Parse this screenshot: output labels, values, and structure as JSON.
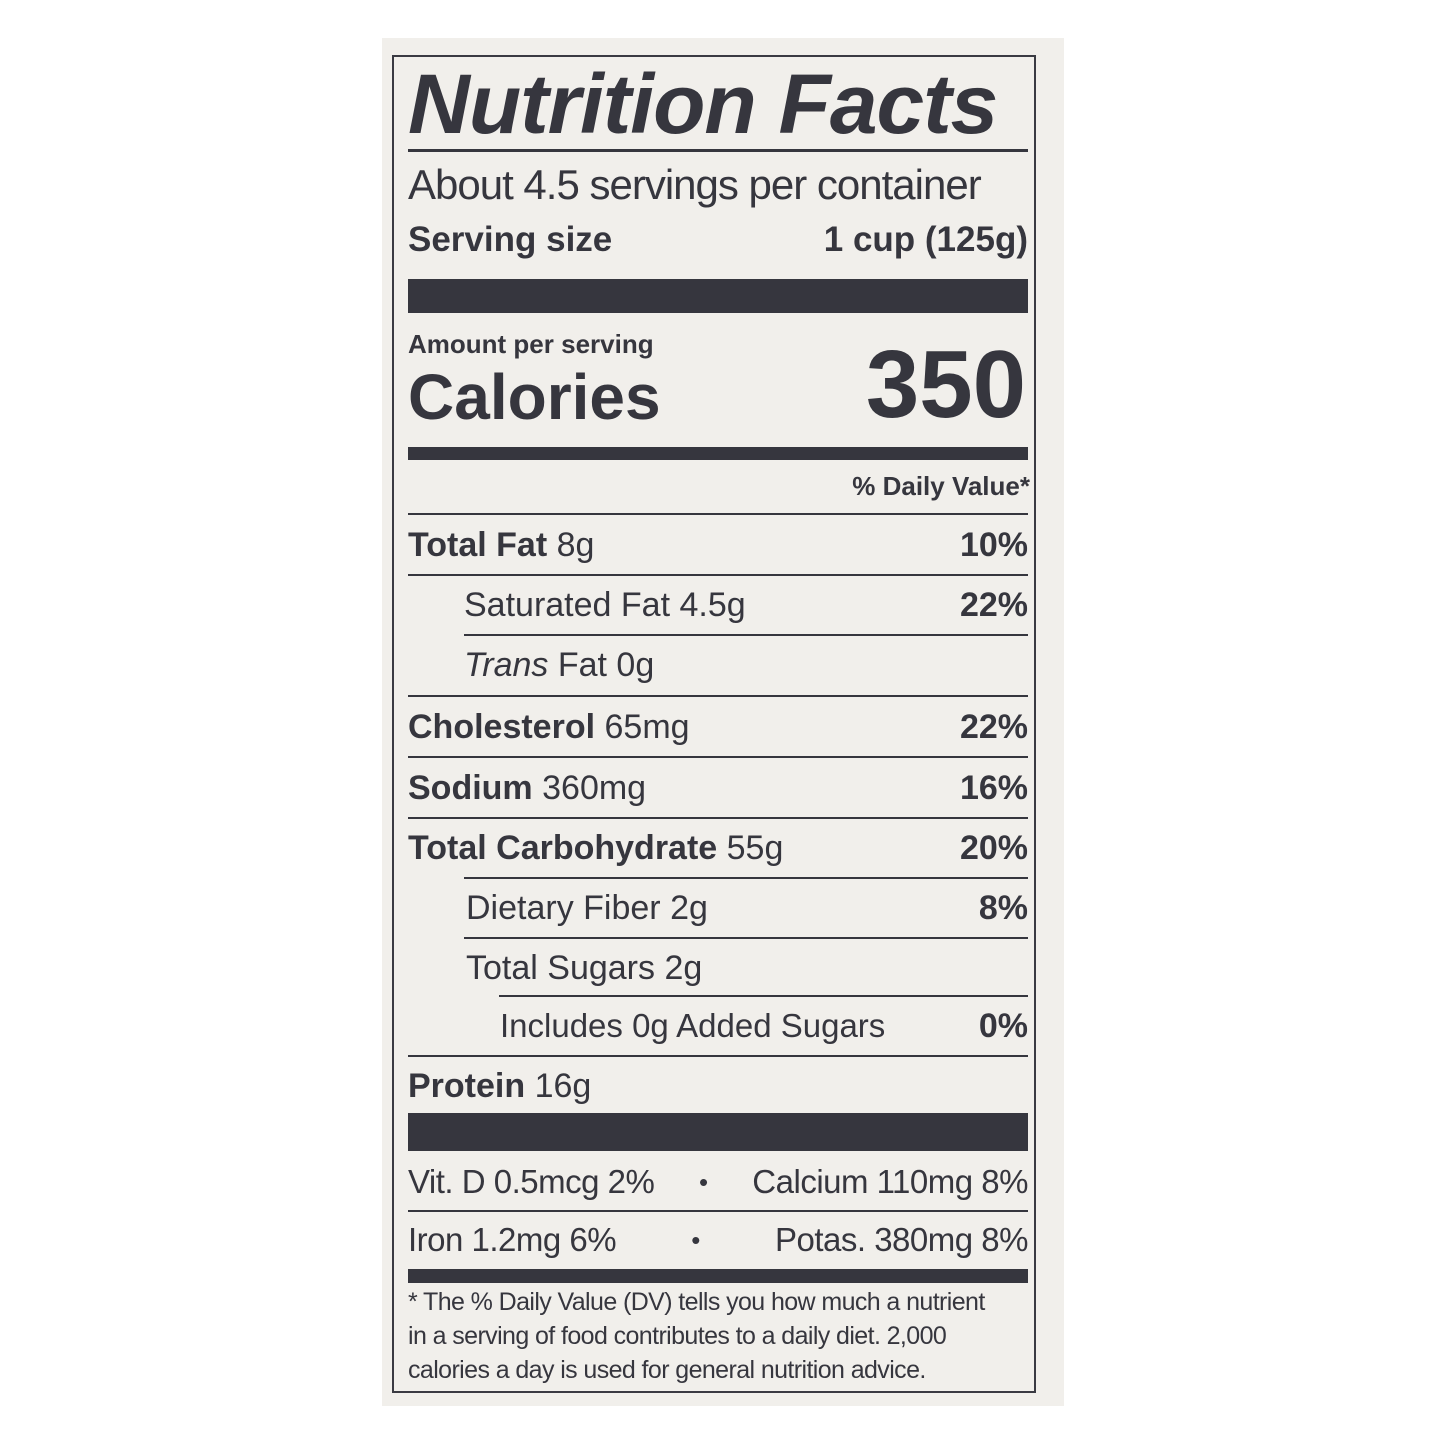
{
  "title": "Nutrition Facts",
  "servings_per_container": "About 4.5 servings per container",
  "serving_size": {
    "label": "Serving size",
    "value": "1 cup (125g)"
  },
  "amount_per_serving": "Amount per serving",
  "calories": {
    "label": "Calories",
    "value": "350"
  },
  "daily_value_header": "% Daily Value*",
  "nutrients": [
    {
      "name": "Total Fat",
      "amount": "8g",
      "dv": "10%"
    },
    {
      "name": "Saturated Fat",
      "amount": "4.5g",
      "dv": "22%"
    },
    {
      "name_italic": "Trans",
      "name": "Fat",
      "amount": "0g",
      "dv": ""
    },
    {
      "name": "Cholesterol",
      "amount": "65mg",
      "dv": "22%"
    },
    {
      "name": "Sodium",
      "amount": "360mg",
      "dv": "16%"
    },
    {
      "name": "Total Carbohydrate",
      "amount": "55g",
      "dv": "20%"
    },
    {
      "name": "Dietary Fiber",
      "amount": "2g",
      "dv": "8%"
    },
    {
      "name": "Total Sugars",
      "amount": "2g",
      "dv": ""
    },
    {
      "name": "Includes 0g Added Sugars",
      "amount": "",
      "dv": "0%"
    },
    {
      "name": "Protein",
      "amount": "16g",
      "dv": ""
    }
  ],
  "micronutrients": [
    {
      "left": "Vit. D 0.5mcg 2%",
      "right": "Calcium 110mg 8%"
    },
    {
      "left": "Iron 1.2mg 6%",
      "right": "Potas. 380mg 8%"
    }
  ],
  "bullet": "•",
  "footnote": [
    "* The % Daily Value (DV) tells you how much a nutrient",
    "in a serving of food contributes to a daily diet. 2,000",
    "calories a day is used for general nutrition advice."
  ]
}
